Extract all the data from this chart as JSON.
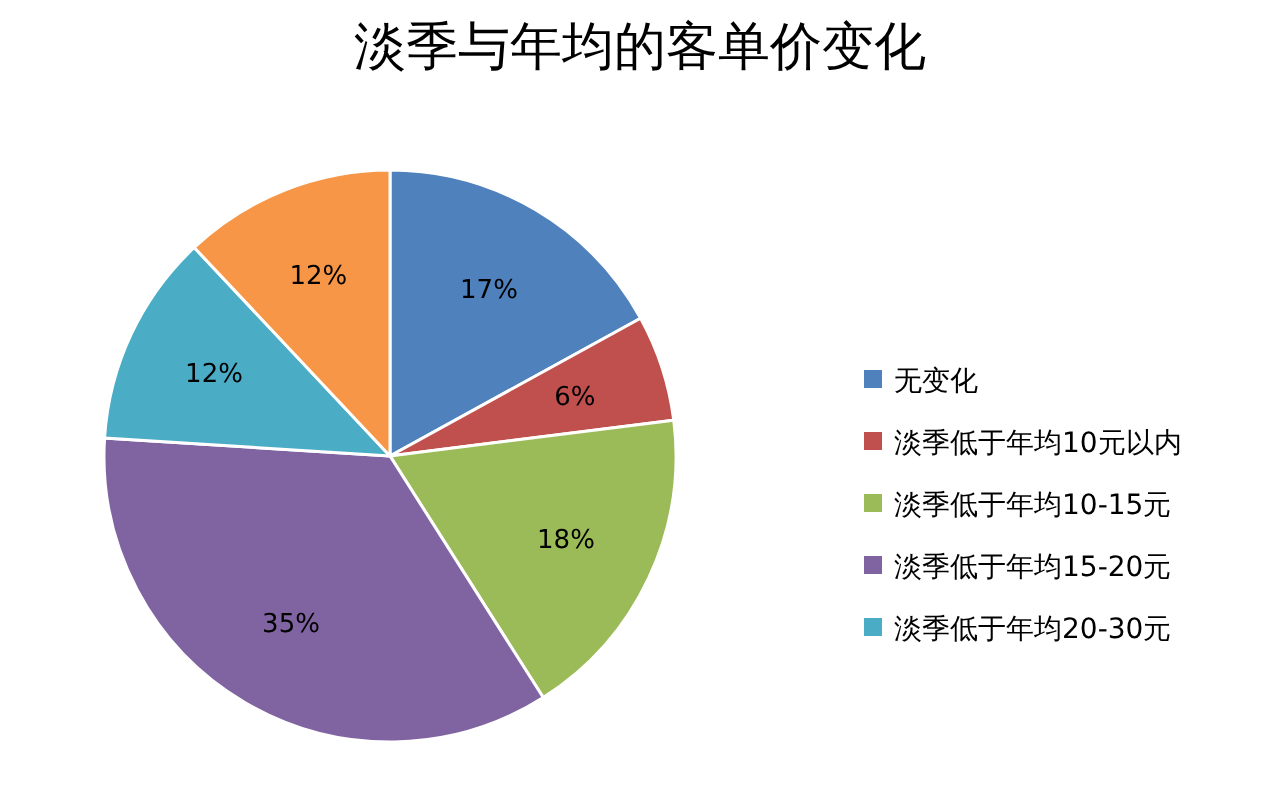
{
  "chart_data": {
    "type": "pie",
    "title": "淡季与年均的客单价变化",
    "categories": [
      "无变化",
      "淡季低于年均10元以内",
      "淡季低于年均10-15元",
      "淡季低于年均15-20元",
      "淡季低于年均20-30元",
      null
    ],
    "values": [
      17,
      6,
      18,
      35,
      12,
      12
    ],
    "value_labels": [
      "17%",
      "6%",
      "18%",
      "35%",
      "12%",
      "12%"
    ],
    "colors": [
      "#4f81bd",
      "#c0504d",
      "#9bbb59",
      "#8064a2",
      "#4bacc6",
      "#f79646"
    ],
    "legend": "right"
  }
}
